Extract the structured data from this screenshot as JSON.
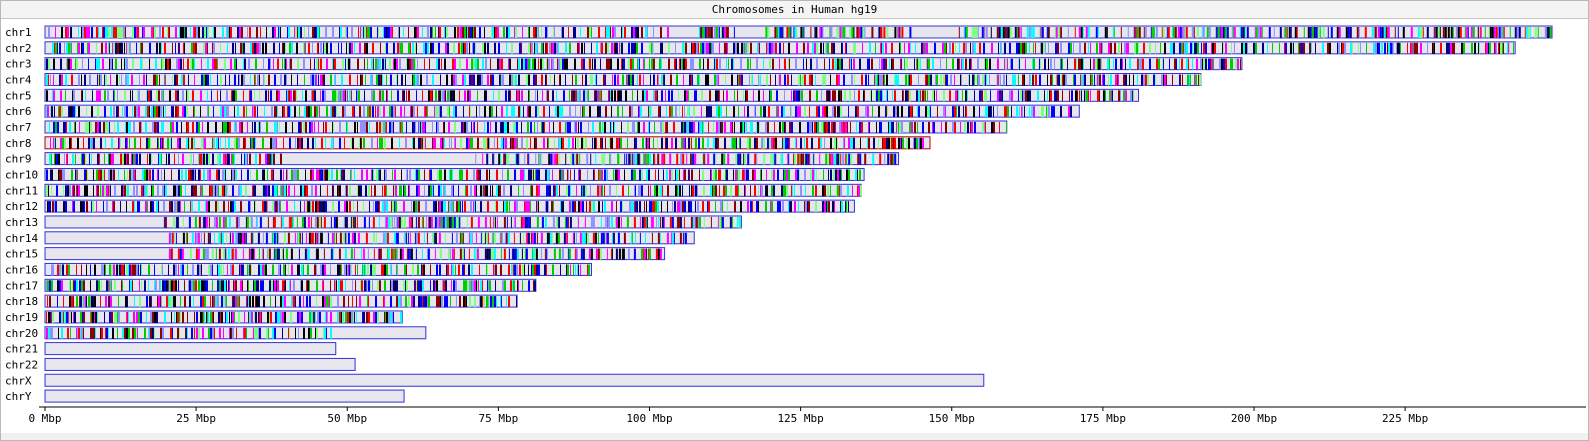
{
  "window": {
    "title": "Chromosomes in  Human hg19"
  },
  "colors": {
    "chromosome_fill": "#e6e6ec",
    "chromosome_border": "#3030e0",
    "feature_palette": [
      "#0000ff",
      "#00cc00",
      "#ff0000",
      "#000000",
      "#00ffff",
      "#8b0000",
      "#7fff7f",
      "#000080",
      "#ff00ff",
      "#9090ff"
    ],
    "highlight_border": "#b00000"
  },
  "chart_data": {
    "type": "bar",
    "title": "Chromosomes in  Human hg19",
    "orientation": "horizontal",
    "x_unit": "Mbp",
    "xlim": [
      0,
      250
    ],
    "x_ticks": [
      0,
      25,
      50,
      75,
      100,
      125,
      150,
      175,
      200,
      225
    ],
    "x_tick_labels": [
      "0 Mbp",
      "25 Mbp",
      "50 Mbp",
      "75 Mbp",
      "100 Mbp",
      "125 Mbp",
      "150 Mbp",
      "175 Mbp",
      "200 Mbp",
      "225 Mbp"
    ],
    "categories": [
      "chr1",
      "chr2",
      "chr3",
      "chr4",
      "chr5",
      "chr6",
      "chr7",
      "chr8",
      "chr9",
      "chr10",
      "chr11",
      "chr12",
      "chr13",
      "chr14",
      "chr15",
      "chr16",
      "chr17",
      "chr18",
      "chr19",
      "chr20",
      "chr21",
      "chr22",
      "chrX",
      "chrY"
    ],
    "lengths_mbp": [
      249.3,
      243.2,
      198.0,
      191.2,
      180.9,
      171.1,
      159.1,
      146.4,
      141.2,
      135.5,
      135.0,
      133.9,
      115.2,
      107.4,
      102.5,
      90.4,
      81.2,
      78.1,
      59.1,
      63.0,
      48.1,
      51.3,
      155.3,
      59.4
    ],
    "features": [
      {
        "chrom": "chr1",
        "regions": [
          [
            0,
            103
          ],
          [
            108,
            114
          ],
          [
            119,
            143
          ],
          [
            150,
            249
          ]
        ],
        "density": 0.6
      },
      {
        "chrom": "chr2",
        "regions": [
          [
            0,
            243
          ]
        ],
        "density": 0.5
      },
      {
        "chrom": "chr3",
        "regions": [
          [
            0,
            198
          ]
        ],
        "density": 0.45
      },
      {
        "chrom": "chr4",
        "regions": [
          [
            0,
            191
          ]
        ],
        "density": 0.45
      },
      {
        "chrom": "chr5",
        "regions": [
          [
            0,
            180
          ]
        ],
        "density": 0.45
      },
      {
        "chrom": "chr6",
        "regions": [
          [
            0,
            170
          ]
        ],
        "density": 0.5
      },
      {
        "chrom": "chr7",
        "regions": [
          [
            0,
            159
          ]
        ],
        "density": 0.5
      },
      {
        "chrom": "chr8",
        "regions": [
          [
            0,
            146
          ]
        ],
        "density": 0.5,
        "highlight": true
      },
      {
        "chrom": "chr9",
        "regions": [
          [
            0,
            39
          ],
          [
            71,
            141
          ]
        ],
        "density": 0.55
      },
      {
        "chrom": "chr10",
        "regions": [
          [
            0,
            135
          ]
        ],
        "density": 0.5
      },
      {
        "chrom": "chr11",
        "regions": [
          [
            0,
            135
          ]
        ],
        "density": 0.55
      },
      {
        "chrom": "chr12",
        "regions": [
          [
            0,
            133
          ]
        ],
        "density": 0.5
      },
      {
        "chrom": "chr13",
        "regions": [
          [
            19.5,
            115
          ]
        ],
        "density": 0.5
      },
      {
        "chrom": "chr14",
        "regions": [
          [
            20,
            107
          ]
        ],
        "density": 0.5
      },
      {
        "chrom": "chr15",
        "regions": [
          [
            20,
            102
          ]
        ],
        "density": 0.5
      },
      {
        "chrom": "chr16",
        "regions": [
          [
            0,
            90
          ]
        ],
        "density": 0.55
      },
      {
        "chrom": "chr17",
        "regions": [
          [
            0,
            81
          ]
        ],
        "density": 0.6
      },
      {
        "chrom": "chr18",
        "regions": [
          [
            0,
            78
          ]
        ],
        "density": 0.5
      },
      {
        "chrom": "chr19",
        "regions": [
          [
            0,
            59
          ]
        ],
        "density": 0.65
      },
      {
        "chrom": "chr20",
        "regions": [
          [
            0,
            48
          ]
        ],
        "density": 0.55
      }
    ]
  }
}
